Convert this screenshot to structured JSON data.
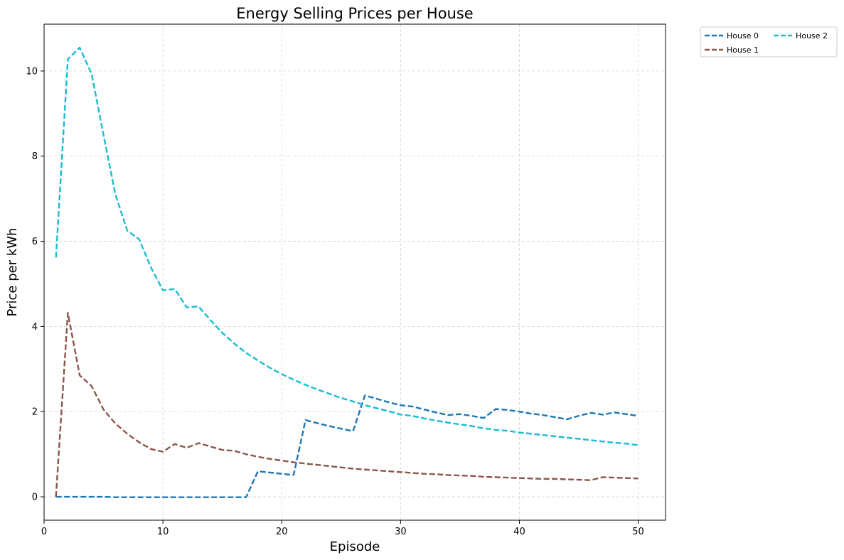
{
  "chart_data": {
    "type": "line",
    "title": "Energy Selling Prices per House",
    "xlabel": "Episode",
    "ylabel": "Price per kWh",
    "xlim": [
      0,
      52.3
    ],
    "ylim": [
      -0.55,
      11.1
    ],
    "xticks": [
      0,
      10,
      20,
      30,
      40,
      50
    ],
    "yticks": [
      0,
      2,
      4,
      6,
      8,
      10
    ],
    "grid": true,
    "legend_position": "outside-top-right",
    "x": [
      1,
      2,
      3,
      4,
      5,
      6,
      7,
      8,
      9,
      10,
      11,
      12,
      13,
      14,
      15,
      16,
      17,
      18,
      19,
      20,
      21,
      22,
      23,
      24,
      25,
      26,
      27,
      28,
      29,
      30,
      31,
      32,
      33,
      34,
      35,
      36,
      37,
      38,
      39,
      40,
      41,
      42,
      43,
      44,
      45,
      46,
      47,
      48,
      49,
      50
    ],
    "series": [
      {
        "name": "House 0",
        "color": "#1f77b4",
        "values": [
          0.0,
          0.0,
          0.0,
          0.0,
          0.0,
          -0.01,
          -0.01,
          -0.01,
          -0.01,
          -0.01,
          -0.01,
          -0.01,
          -0.01,
          -0.01,
          -0.01,
          -0.01,
          -0.01,
          0.6,
          0.57,
          0.54,
          0.51,
          1.8,
          1.73,
          1.66,
          1.6,
          1.54,
          2.38,
          2.3,
          2.22,
          2.15,
          2.12,
          2.05,
          1.98,
          1.92,
          1.94,
          1.9,
          1.85,
          2.06,
          2.04,
          2.0,
          1.95,
          1.92,
          1.87,
          1.82,
          1.9,
          1.97,
          1.93,
          1.98,
          1.94,
          1.9
        ]
      },
      {
        "name": "House 1",
        "color": "#8c564b",
        "values": [
          0.0,
          4.32,
          2.85,
          2.6,
          2.05,
          1.72,
          1.48,
          1.28,
          1.12,
          1.06,
          1.24,
          1.15,
          1.26,
          1.18,
          1.1,
          1.08,
          1.0,
          0.94,
          0.89,
          0.85,
          0.81,
          0.78,
          0.75,
          0.72,
          0.69,
          0.66,
          0.64,
          0.62,
          0.6,
          0.58,
          0.56,
          0.54,
          0.53,
          0.51,
          0.5,
          0.49,
          0.47,
          0.46,
          0.45,
          0.44,
          0.43,
          0.42,
          0.42,
          0.41,
          0.4,
          0.39,
          0.46,
          0.45,
          0.44,
          0.43
        ]
      },
      {
        "name": "House 2",
        "color": "#17becf",
        "values": [
          5.62,
          10.28,
          10.55,
          9.93,
          8.5,
          7.1,
          6.25,
          6.05,
          5.38,
          4.85,
          4.88,
          4.45,
          4.47,
          4.15,
          3.85,
          3.6,
          3.38,
          3.2,
          3.03,
          2.88,
          2.75,
          2.63,
          2.52,
          2.42,
          2.32,
          2.24,
          2.15,
          2.08,
          2.01,
          1.93,
          1.9,
          1.84,
          1.79,
          1.74,
          1.7,
          1.66,
          1.61,
          1.57,
          1.55,
          1.51,
          1.48,
          1.45,
          1.42,
          1.39,
          1.36,
          1.33,
          1.3,
          1.27,
          1.25,
          1.21
        ]
      }
    ]
  }
}
